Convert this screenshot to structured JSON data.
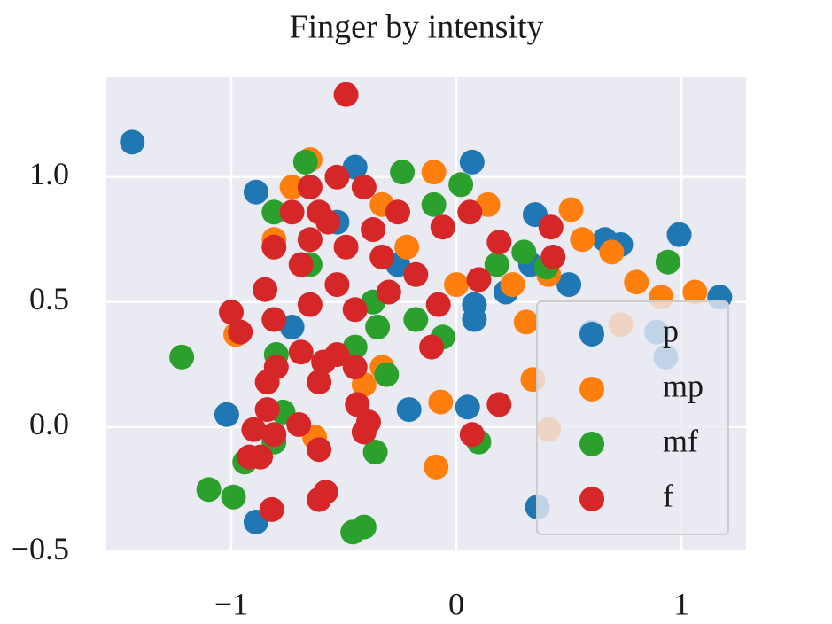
{
  "chart_data": {
    "type": "scatter",
    "title": "Finger by intensity",
    "xlim": [
      -1.555,
      1.287
    ],
    "ylim": [
      -0.49,
      1.4
    ],
    "xticks": [
      {
        "value": -1,
        "label": "−1"
      },
      0,
      1
    ],
    "yticks": [
      {
        "value": -0.5,
        "label": "−0.5"
      },
      {
        "value": 0,
        "label": "0.0"
      },
      0.5,
      {
        "value": 1,
        "label": "1.0"
      }
    ],
    "grid": true,
    "legend": "lower right",
    "series": [
      {
        "name": "p",
        "color": "#1f77b4",
        "x": [
          -1.44,
          -0.89,
          -0.45,
          0.07,
          0.35,
          0.66,
          0.73,
          0.99,
          1.17,
          0.5,
          0.6,
          0.08,
          0.08,
          -1.02,
          -0.21,
          0.05,
          -0.89,
          0.36,
          0.93,
          0.89,
          0.22,
          0.33,
          -0.73,
          -0.26,
          -0.53
        ],
        "y": [
          1.14,
          0.94,
          1.04,
          1.06,
          0.85,
          0.75,
          0.73,
          0.77,
          0.52,
          0.57,
          0.38,
          0.49,
          0.43,
          0.05,
          0.07,
          0.08,
          -0.38,
          -0.32,
          0.28,
          0.38,
          0.54,
          0.65,
          0.4,
          0.65,
          0.82
        ]
      },
      {
        "name": "mp",
        "color": "#ff7f0e",
        "x": [
          -0.65,
          -0.1,
          0.14,
          0.51,
          0.56,
          0.8,
          0.91,
          1.06,
          0.69,
          0.41,
          0.25,
          0.31,
          0.34,
          0.73,
          -0.07,
          -0.09,
          0.41,
          -0.63,
          -0.33,
          -0.41,
          -0.98,
          -0.81,
          -0.73,
          -0.33,
          0.0,
          -0.22
        ],
        "y": [
          1.07,
          1.02,
          0.89,
          0.87,
          0.75,
          0.58,
          0.52,
          0.54,
          0.7,
          0.61,
          0.57,
          0.42,
          0.19,
          0.41,
          0.1,
          -0.16,
          -0.01,
          -0.04,
          0.24,
          0.17,
          0.37,
          0.75,
          0.96,
          0.89,
          0.57,
          0.72
        ]
      },
      {
        "name": "mf",
        "color": "#2ca02c",
        "x": [
          -0.67,
          -0.24,
          0.02,
          -0.81,
          -0.1,
          0.18,
          0.3,
          0.4,
          0.94,
          -1.22,
          -0.8,
          -0.45,
          -0.35,
          -0.31,
          -0.06,
          -0.18,
          -0.77,
          -0.81,
          -0.94,
          -1.1,
          -0.99,
          -0.36,
          -0.46,
          -0.41,
          0.1,
          -0.65,
          -0.37
        ],
        "y": [
          1.06,
          1.02,
          0.97,
          0.86,
          0.89,
          0.65,
          0.7,
          0.64,
          0.66,
          0.28,
          0.29,
          0.32,
          0.4,
          0.21,
          0.36,
          0.43,
          0.06,
          -0.06,
          -0.14,
          -0.25,
          -0.28,
          -0.1,
          -0.42,
          -0.4,
          -0.06,
          0.65,
          0.5
        ]
      },
      {
        "name": "f",
        "color": "#d62728",
        "x": [
          -0.49,
          -0.65,
          -0.41,
          -0.53,
          -0.73,
          -0.57,
          -0.37,
          -0.26,
          -0.06,
          0.06,
          0.19,
          0.42,
          0.43,
          0.1,
          -0.08,
          -0.81,
          -0.69,
          -0.53,
          -0.3,
          -0.18,
          -0.85,
          -1.0,
          -0.96,
          -0.81,
          -0.65,
          -0.45,
          -0.69,
          -0.59,
          -0.53,
          -0.45,
          -0.8,
          -0.84,
          -0.61,
          -0.11,
          -0.44,
          -0.39,
          -0.41,
          -0.7,
          -0.84,
          -0.9,
          -0.81,
          -0.87,
          -0.92,
          -0.61,
          0.07,
          0.19,
          -0.61,
          -0.58,
          -0.82,
          -0.61,
          -0.49,
          -0.33,
          -0.65
        ],
        "y": [
          1.33,
          0.96,
          0.96,
          1.0,
          0.86,
          0.82,
          0.79,
          0.86,
          0.8,
          0.86,
          0.74,
          0.8,
          0.68,
          0.59,
          0.49,
          0.72,
          0.65,
          0.57,
          0.54,
          0.61,
          0.55,
          0.46,
          0.38,
          0.43,
          0.49,
          0.47,
          0.3,
          0.26,
          0.29,
          0.24,
          0.24,
          0.18,
          0.18,
          0.32,
          0.09,
          0.02,
          -0.02,
          0.01,
          0.07,
          -0.01,
          -0.03,
          -0.12,
          -0.12,
          -0.09,
          -0.03,
          0.09,
          -0.29,
          -0.26,
          -0.33,
          0.86,
          0.72,
          0.68,
          0.75
        ]
      }
    ]
  }
}
